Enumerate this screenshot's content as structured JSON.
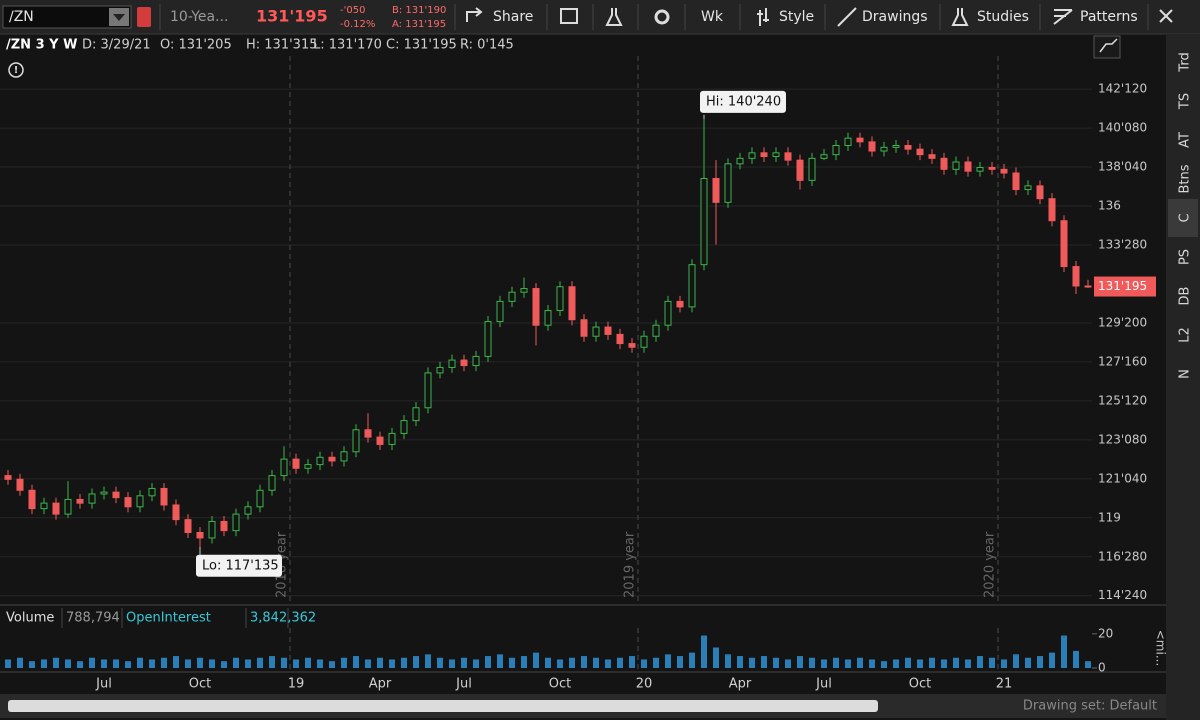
{
  "toolbar": {
    "symbol": "/ZN",
    "description": "10-Yea...",
    "last": "131'195",
    "change": "-'050",
    "change_pct": "-0.12%",
    "bid": "B: 131'190",
    "ask": "A: 131'195",
    "buttons": [
      "Share",
      "Wk",
      "Style",
      "Drawings",
      "Studies",
      "Patterns"
    ]
  },
  "header": [
    "/ZN 3 Y W",
    "D: 3/29/21",
    "O: 131'205",
    "H: 131'315",
    "L: 131'170",
    "C: 131'195",
    "R: 0'145"
  ],
  "sidebar": [
    "Trd",
    "TS",
    "AT",
    "Btns",
    "C",
    "PS",
    "DB",
    "L2",
    "N"
  ],
  "volume_header": [
    "Volume",
    "788,794",
    "OpenInterest",
    "3,842,362"
  ],
  "footer": "Drawing set: Default",
  "chart_data": {
    "type": "candlestick",
    "up_color": "#3cb44a",
    "down_color": "#f05a5a",
    "grid": true,
    "ylim": [
      114.3,
      144.18
    ],
    "yticks": [
      {
        "value": 142.375,
        "label": "142'120"
      },
      {
        "value": 140.25,
        "label": "140'080"
      },
      {
        "value": 138.125,
        "label": "138'040"
      },
      136,
      {
        "value": 133.875,
        "label": "133'280"
      },
      {
        "value": 129.625,
        "label": "129'200"
      },
      {
        "value": 127.5,
        "label": "127'160"
      },
      {
        "value": 125.375,
        "label": "125'120"
      },
      {
        "value": 123.25,
        "label": "123'080"
      },
      {
        "value": 121.125,
        "label": "121'040"
      },
      119,
      {
        "value": 116.875,
        "label": "116'280"
      },
      {
        "value": 114.75,
        "label": "114'240"
      }
    ],
    "last_price_label": "131'195",
    "high_label": "Hi: 140'240",
    "low_label": "Lo: 117'135",
    "year_labels": [
      "2018 year",
      "2019 year",
      "2020 year"
    ],
    "categories": [
      null,
      null,
      null,
      null,
      null,
      null,
      null,
      null,
      "Jul",
      null,
      null,
      null,
      null,
      null,
      null,
      null,
      "Oct",
      null,
      null,
      null,
      null,
      null,
      null,
      null,
      "19",
      null,
      null,
      null,
      null,
      null,
      null,
      "Apr",
      null,
      null,
      null,
      null,
      null,
      null,
      "Jul",
      null,
      null,
      null,
      null,
      null,
      null,
      null,
      "Oct",
      null,
      null,
      null,
      null,
      null,
      null,
      "20",
      null,
      null,
      null,
      null,
      null,
      null,
      null,
      "Apr",
      null,
      null,
      null,
      null,
      null,
      null,
      "Jul",
      null,
      null,
      null,
      null,
      null,
      null,
      null,
      "Oct",
      null,
      null,
      null,
      null,
      null,
      null,
      "21",
      null,
      null,
      null,
      null,
      null,
      null,
      null
    ],
    "candles": [
      [
        121.3,
        121.6,
        120.8,
        121.1
      ],
      [
        121.1,
        121.4,
        120.2,
        120.5
      ],
      [
        120.5,
        120.8,
        119.2,
        119.5
      ],
      [
        119.5,
        120.1,
        119.2,
        119.8
      ],
      [
        119.8,
        120.1,
        118.9,
        119.2
      ],
      [
        119.2,
        121.0,
        119.0,
        120.0
      ],
      [
        120.0,
        120.3,
        119.5,
        119.8
      ],
      [
        119.8,
        120.6,
        119.5,
        120.3
      ],
      [
        120.3,
        120.7,
        120.0,
        120.4
      ],
      [
        120.4,
        120.7,
        119.8,
        120.1
      ],
      [
        120.1,
        120.4,
        119.3,
        119.6
      ],
      [
        119.6,
        120.5,
        119.3,
        120.2
      ],
      [
        120.2,
        120.9,
        119.9,
        120.6
      ],
      [
        120.6,
        120.9,
        119.4,
        119.7
      ],
      [
        119.7,
        120.0,
        118.6,
        118.9
      ],
      [
        118.9,
        119.2,
        117.9,
        118.2
      ],
      [
        118.2,
        118.5,
        117.42,
        117.9
      ],
      [
        117.9,
        119.1,
        117.6,
        118.8
      ],
      [
        118.8,
        119.1,
        118.0,
        118.3
      ],
      [
        118.3,
        119.5,
        118.0,
        119.2
      ],
      [
        119.2,
        119.9,
        118.9,
        119.6
      ],
      [
        119.6,
        120.8,
        119.3,
        120.5
      ],
      [
        120.5,
        121.6,
        120.2,
        121.3
      ],
      [
        121.3,
        122.9,
        121.0,
        122.2
      ],
      [
        122.2,
        122.5,
        121.4,
        121.7
      ],
      [
        121.7,
        122.2,
        121.4,
        121.9
      ],
      [
        121.9,
        122.6,
        121.6,
        122.3
      ],
      [
        122.3,
        122.6,
        121.8,
        122.1
      ],
      [
        122.1,
        122.9,
        121.8,
        122.6
      ],
      [
        122.6,
        124.1,
        122.3,
        123.8
      ],
      [
        123.8,
        124.7,
        123.1,
        123.4
      ],
      [
        123.4,
        123.7,
        122.7,
        123.0
      ],
      [
        123.0,
        123.9,
        122.7,
        123.6
      ],
      [
        123.6,
        124.6,
        123.3,
        124.3
      ],
      [
        124.3,
        125.3,
        124.0,
        125.0
      ],
      [
        125.0,
        127.2,
        124.7,
        126.9
      ],
      [
        126.9,
        127.5,
        126.6,
        127.2
      ],
      [
        127.2,
        127.9,
        126.9,
        127.6
      ],
      [
        127.6,
        127.9,
        127.0,
        127.3
      ],
      [
        127.3,
        128.1,
        127.0,
        127.8
      ],
      [
        127.8,
        130.0,
        127.5,
        129.7
      ],
      [
        129.7,
        131.1,
        129.4,
        130.8
      ],
      [
        130.8,
        131.6,
        130.5,
        131.3
      ],
      [
        131.3,
        132.1,
        131.0,
        131.5
      ],
      [
        131.5,
        131.8,
        128.4,
        129.5
      ],
      [
        129.5,
        130.6,
        129.2,
        130.3
      ],
      [
        130.3,
        131.9,
        130.0,
        131.6
      ],
      [
        131.6,
        131.9,
        129.5,
        129.8
      ],
      [
        129.8,
        130.1,
        128.6,
        128.9
      ],
      [
        128.9,
        129.7,
        128.6,
        129.4
      ],
      [
        129.4,
        129.7,
        128.7,
        129.0
      ],
      [
        129.0,
        129.3,
        128.2,
        128.5
      ],
      [
        128.5,
        128.8,
        128.0,
        128.3
      ],
      [
        128.3,
        129.2,
        128.0,
        128.9
      ],
      [
        128.9,
        129.8,
        128.6,
        129.5
      ],
      [
        129.5,
        131.1,
        129.2,
        130.8
      ],
      [
        130.8,
        131.1,
        130.2,
        130.5
      ],
      [
        130.5,
        133.1,
        130.2,
        132.8
      ],
      [
        132.8,
        140.75,
        132.5,
        137.5
      ],
      [
        137.5,
        138.5,
        133.9,
        136.2
      ],
      [
        136.2,
        138.6,
        135.9,
        138.3
      ],
      [
        138.3,
        138.9,
        138.0,
        138.6
      ],
      [
        138.6,
        139.2,
        138.3,
        138.9
      ],
      [
        138.9,
        139.2,
        138.4,
        138.7
      ],
      [
        138.7,
        139.2,
        138.4,
        138.9
      ],
      [
        138.9,
        139.2,
        138.2,
        138.5
      ],
      [
        138.5,
        138.8,
        136.9,
        137.4
      ],
      [
        137.4,
        138.9,
        137.1,
        138.6
      ],
      [
        138.6,
        139.1,
        138.5,
        138.8
      ],
      [
        138.8,
        139.6,
        138.5,
        139.3
      ],
      [
        139.3,
        140.0,
        139.0,
        139.7
      ],
      [
        139.7,
        140.0,
        139.2,
        139.5
      ],
      [
        139.5,
        139.8,
        138.7,
        139.0
      ],
      [
        139.0,
        139.5,
        138.7,
        139.2
      ],
      [
        139.2,
        139.6,
        138.9,
        139.3
      ],
      [
        139.3,
        139.6,
        138.8,
        139.1
      ],
      [
        139.1,
        139.4,
        138.5,
        138.8
      ],
      [
        138.8,
        139.1,
        138.3,
        138.6
      ],
      [
        138.6,
        138.9,
        137.7,
        138.0
      ],
      [
        138.0,
        138.7,
        137.7,
        138.4
      ],
      [
        138.4,
        138.7,
        137.6,
        137.9
      ],
      [
        137.9,
        138.4,
        137.6,
        138.1
      ],
      [
        138.1,
        138.4,
        137.7,
        138.0
      ],
      [
        138.0,
        138.3,
        137.5,
        137.8
      ],
      [
        137.8,
        138.1,
        136.6,
        136.9
      ],
      [
        136.9,
        137.4,
        136.6,
        137.1
      ],
      [
        137.1,
        137.4,
        136.1,
        136.4
      ],
      [
        136.4,
        136.7,
        134.9,
        135.2
      ],
      [
        135.2,
        135.5,
        132.4,
        132.7
      ],
      [
        132.7,
        133.0,
        131.2,
        131.64
      ],
      [
        131.64,
        131.98,
        131.53,
        131.61
      ]
    ],
    "volume": {
      "color": "#2a7fb8",
      "ylim": [
        0,
        24
      ],
      "yticks": [
        0,
        20
      ],
      "unit_label": "<mi...",
      "values": [
        5,
        6,
        4,
        5,
        6,
        5,
        4,
        6,
        5,
        5,
        4,
        6,
        5,
        6,
        7,
        5,
        6,
        5,
        4,
        6,
        5,
        6,
        7,
        6,
        5,
        6,
        5,
        4,
        6,
        7,
        5,
        6,
        5,
        6,
        7,
        8,
        6,
        5,
        6,
        5,
        7,
        8,
        6,
        7,
        9,
        6,
        5,
        6,
        7,
        6,
        5,
        6,
        7,
        5,
        6,
        8,
        7,
        9,
        19,
        12,
        8,
        7,
        6,
        7,
        6,
        5,
        7,
        6,
        5,
        6,
        5,
        6,
        5,
        4,
        5,
        6,
        5,
        6,
        5,
        6,
        5,
        7,
        6,
        5,
        8,
        6,
        7,
        9,
        19,
        10,
        4
      ]
    }
  }
}
